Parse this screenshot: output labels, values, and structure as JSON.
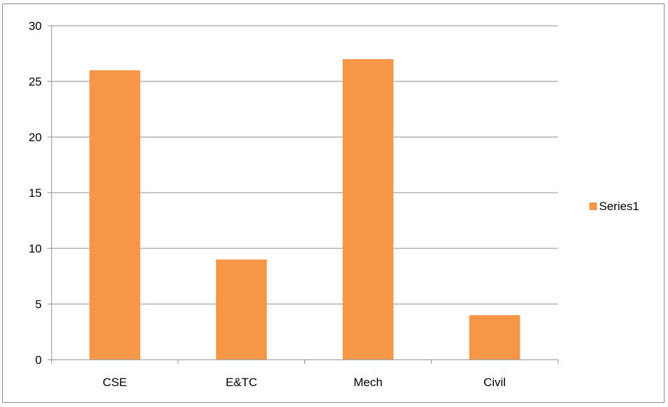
{
  "chart_data": {
    "type": "bar",
    "categories": [
      "CSE",
      "E&TC",
      "Mech",
      "Civil"
    ],
    "series": [
      {
        "name": "Series1",
        "values": [
          26,
          9,
          27,
          4
        ],
        "color": "#f79646"
      }
    ],
    "title": "",
    "xlabel": "",
    "ylabel": "",
    "ylim": [
      0,
      30
    ],
    "yticks": [
      "0",
      "5",
      "10",
      "15",
      "20",
      "25",
      "30"
    ],
    "grid": true,
    "gridline_color": "#8c8c8c",
    "legend_position": "right"
  }
}
